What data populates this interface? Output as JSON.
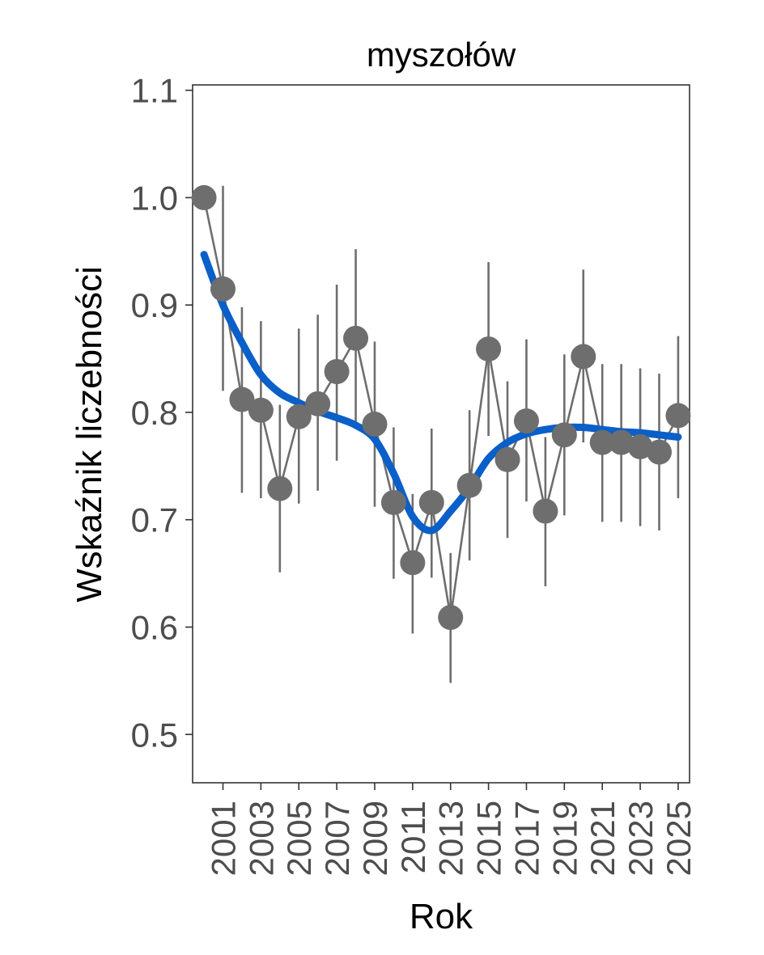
{
  "chart_data": {
    "type": "line",
    "title": "myszołów",
    "xlabel": "Rok",
    "ylabel": "Wskaźnik liczebności",
    "xlim": [
      1999.4,
      2025.6
    ],
    "ylim": [
      0.455,
      1.105
    ],
    "yticks": [
      "0.5",
      "0.6",
      "0.7",
      "0.8",
      "0.9",
      "1.0",
      "1.1"
    ],
    "xticks": [
      "2001",
      "2003",
      "2005",
      "2007",
      "2009",
      "2011",
      "2013",
      "2015",
      "2017",
      "2019",
      "2021",
      "2023",
      "2025"
    ],
    "grid": false,
    "legend": "none",
    "colors": {
      "points": "#6e6e6e",
      "line": "#6e6e6e",
      "errorbars": "#6e6e6e",
      "trend": "#0a5fc8",
      "axis": "#333333"
    },
    "series": [
      {
        "type": "points_with_errorbars",
        "x": [
          2000,
          2001,
          2002,
          2003,
          2004,
          2005,
          2006,
          2007,
          2008,
          2009,
          2010,
          2011,
          2012,
          2013,
          2014,
          2015,
          2016,
          2017,
          2018,
          2019,
          2020,
          2021,
          2022,
          2023,
          2024,
          2025
        ],
        "y": [
          1.0,
          0.915,
          0.812,
          0.802,
          0.729,
          0.796,
          0.808,
          0.838,
          0.869,
          0.789,
          0.716,
          0.66,
          0.716,
          0.609,
          0.732,
          0.859,
          0.756,
          0.792,
          0.708,
          0.779,
          0.852,
          0.772,
          0.772,
          0.768,
          0.763,
          0.797
        ],
        "lower": [
          null,
          0.82,
          0.725,
          0.72,
          0.651,
          0.715,
          0.727,
          0.755,
          0.785,
          0.712,
          0.645,
          0.594,
          0.646,
          0.548,
          0.662,
          0.778,
          0.683,
          0.717,
          0.638,
          0.704,
          0.772,
          0.698,
          0.698,
          0.694,
          0.69,
          0.72
        ],
        "upper": [
          null,
          1.011,
          0.898,
          0.885,
          0.807,
          0.878,
          0.891,
          0.919,
          0.952,
          0.866,
          0.786,
          0.724,
          0.785,
          0.669,
          0.802,
          0.94,
          0.829,
          0.868,
          0.777,
          0.854,
          0.933,
          0.845,
          0.845,
          0.841,
          0.836,
          0.871
        ]
      },
      {
        "type": "smooth_trend",
        "x": [
          2000,
          2001,
          2002,
          2003,
          2004,
          2005,
          2006,
          2007,
          2008,
          2009,
          2010,
          2011,
          2012,
          2013,
          2014,
          2015,
          2016,
          2017,
          2018,
          2019,
          2020,
          2021,
          2022,
          2023,
          2024,
          2025
        ],
        "y": [
          0.947,
          0.9,
          0.865,
          0.835,
          0.818,
          0.809,
          0.801,
          0.795,
          0.788,
          0.775,
          0.743,
          0.703,
          0.69,
          0.708,
          0.73,
          0.757,
          0.772,
          0.78,
          0.784,
          0.786,
          0.786,
          0.784,
          0.782,
          0.781,
          0.779,
          0.777
        ]
      }
    ]
  }
}
